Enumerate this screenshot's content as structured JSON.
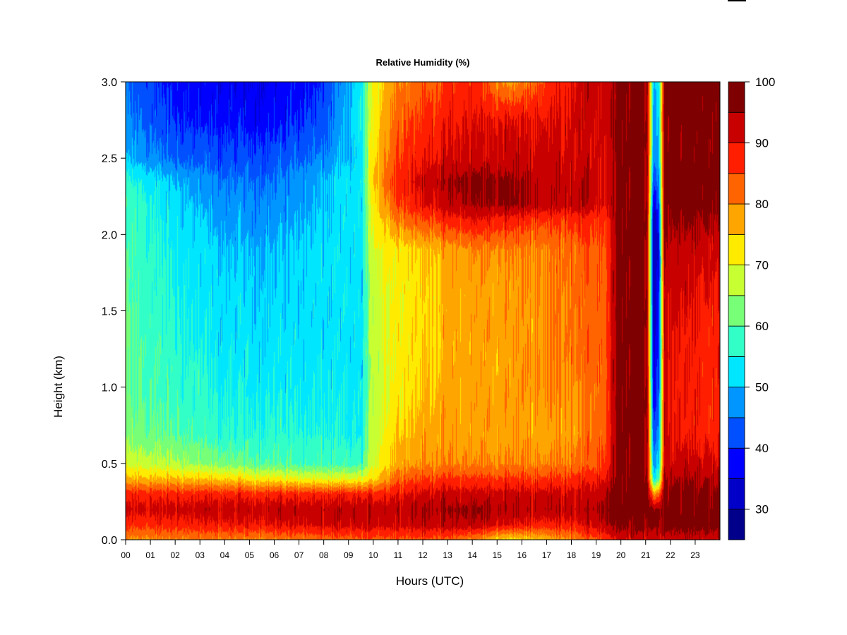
{
  "chart_data": {
    "type": "heatmap",
    "title": "Relative Humidity (%)",
    "xlabel": "Hours (UTC)",
    "ylabel": "Height (km)",
    "x_ticks": [
      "00",
      "01",
      "02",
      "03",
      "04",
      "05",
      "06",
      "07",
      "08",
      "09",
      "10",
      "11",
      "12",
      "13",
      "14",
      "15",
      "16",
      "17",
      "18",
      "19",
      "20",
      "21",
      "22",
      "23"
    ],
    "y_ticks": [
      "0.0",
      "0.5",
      "1.0",
      "1.5",
      "2.0",
      "2.5",
      "3.0"
    ],
    "xlim": [
      0,
      24
    ],
    "ylim": [
      0,
      3
    ],
    "colorbar": {
      "range": [
        25,
        100
      ],
      "ticks": [
        "30",
        "40",
        "50",
        "60",
        "70",
        "80",
        "90",
        "100"
      ],
      "levels": [
        25,
        30,
        35,
        40,
        45,
        50,
        55,
        60,
        65,
        70,
        75,
        80,
        85,
        90,
        95,
        100
      ],
      "colors": [
        "#00008B",
        "#0000C8",
        "#0000FF",
        "#0050FF",
        "#0096FF",
        "#00E6FF",
        "#32FFC8",
        "#78FF78",
        "#C8FF32",
        "#FFEB00",
        "#FFA500",
        "#FF6400",
        "#FF1E00",
        "#C80000",
        "#7F0000"
      ]
    },
    "profiles": {
      "heights_km": [
        0.0,
        0.1,
        0.2,
        0.3,
        0.4,
        0.5,
        0.7,
        1.0,
        1.3,
        1.6,
        1.9,
        2.1,
        2.2,
        2.35,
        2.5,
        2.75,
        3.0
      ],
      "times_h": [
        0,
        2,
        4,
        6,
        8,
        9.5,
        10,
        11,
        12.5,
        14,
        15.5,
        17,
        18.5,
        19.4,
        19.8,
        20.5,
        21.05,
        21.3,
        21.5,
        21.75,
        22,
        23,
        24
      ],
      "rh_percent": [
        [
          78,
          86,
          91,
          88,
          76,
          68,
          62,
          60,
          61,
          60,
          59,
          58,
          58,
          56,
          50,
          46,
          44
        ],
        [
          80,
          88,
          92,
          88,
          76,
          66,
          60,
          58,
          56,
          55,
          54,
          53,
          52,
          50,
          44,
          40,
          38
        ],
        [
          80,
          89,
          93,
          88,
          74,
          62,
          56,
          54,
          53,
          52,
          50,
          48,
          47,
          45,
          42,
          38,
          36
        ],
        [
          80,
          90,
          93,
          88,
          72,
          60,
          56,
          54,
          52,
          51,
          50,
          48,
          47,
          45,
          42,
          38,
          36
        ],
        [
          82,
          91,
          93,
          88,
          70,
          58,
          55,
          54,
          52,
          52,
          52,
          51,
          50,
          50,
          46,
          42,
          40
        ],
        [
          83,
          92,
          93,
          88,
          70,
          58,
          54,
          53,
          52,
          52,
          52,
          52,
          52,
          54,
          52,
          54,
          54
        ],
        [
          84,
          92,
          93,
          88,
          74,
          70,
          68,
          68,
          68,
          69,
          70,
          72,
          74,
          76,
          74,
          72,
          72
        ],
        [
          84,
          92,
          94,
          90,
          84,
          78,
          75,
          73,
          72,
          72,
          73,
          82,
          86,
          88,
          86,
          84,
          80
        ],
        [
          84,
          93,
          95,
          92,
          86,
          80,
          78,
          76,
          75,
          75,
          76,
          86,
          92,
          94,
          90,
          88,
          84
        ],
        [
          80,
          94,
          96,
          92,
          86,
          80,
          78,
          78,
          78,
          78,
          80,
          90,
          95,
          97,
          92,
          90,
          88
        ],
        [
          72,
          90,
          94,
          92,
          86,
          80,
          78,
          78,
          78,
          78,
          80,
          88,
          96,
          96,
          92,
          90,
          78
        ],
        [
          76,
          88,
          94,
          92,
          86,
          80,
          78,
          80,
          80,
          80,
          80,
          86,
          93,
          93,
          92,
          90,
          86
        ],
        [
          82,
          90,
          94,
          92,
          88,
          82,
          80,
          80,
          82,
          82,
          84,
          88,
          94,
          94,
          92,
          92,
          92
        ],
        [
          86,
          94,
          96,
          94,
          90,
          86,
          84,
          84,
          84,
          84,
          84,
          86,
          90,
          90,
          90,
          92,
          92
        ],
        [
          90,
          96,
          98,
          97,
          96,
          96,
          96,
          96,
          96,
          96,
          96,
          96,
          96,
          96,
          96,
          96,
          96
        ],
        [
          92,
          97,
          98,
          98,
          98,
          98,
          98,
          98,
          98,
          98,
          98,
          98,
          98,
          98,
          98,
          98,
          98
        ],
        [
          92,
          97,
          98,
          98,
          96,
          96,
          96,
          96,
          96,
          96,
          96,
          96,
          96,
          96,
          96,
          96,
          96
        ],
        [
          92,
          96,
          96,
          80,
          55,
          48,
          42,
          36,
          34,
          32,
          30,
          32,
          36,
          42,
          46,
          48,
          50
        ],
        [
          92,
          96,
          96,
          82,
          58,
          50,
          46,
          40,
          38,
          36,
          34,
          36,
          40,
          44,
          48,
          50,
          52
        ],
        [
          92,
          98,
          98,
          98,
          96,
          94,
          92,
          92,
          92,
          94,
          96,
          98,
          98,
          98,
          98,
          98,
          98
        ],
        [
          92,
          98,
          98,
          97,
          95,
          92,
          90,
          90,
          90,
          92,
          94,
          96,
          98,
          98,
          98,
          98,
          98
        ],
        [
          92,
          98,
          98,
          97,
          95,
          92,
          88,
          88,
          88,
          90,
          92,
          96,
          98,
          98,
          98,
          98,
          98
        ],
        [
          92,
          98,
          98,
          97,
          95,
          92,
          88,
          88,
          88,
          90,
          92,
          96,
          98,
          98,
          98,
          98,
          98
        ]
      ]
    }
  }
}
